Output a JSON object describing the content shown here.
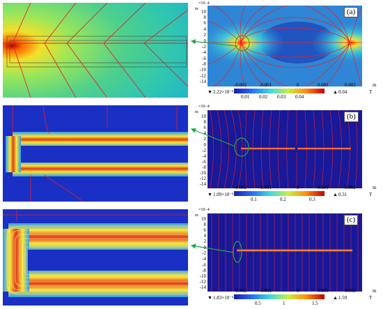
{
  "panels": [
    {
      "label": "(a)",
      "y_exponent": "×10−4",
      "y_unit": "m",
      "x_unit": "m",
      "y_ticks": [
        "10",
        "8",
        "6",
        "4",
        "2",
        "0",
        "-2",
        "-4",
        "-6",
        "-8",
        "-10",
        "-12",
        "-14"
      ],
      "x_ticks": [
        "-0.002",
        "-0.001",
        "0",
        "0.001",
        "0.002"
      ],
      "min_value": "2.22×10⁻⁶",
      "max_value": "0.04",
      "colorbar_ticks": [
        "0.01",
        "0.02",
        "0.03",
        "0.04"
      ],
      "colorbar_unit": "T"
    },
    {
      "label": "(b)",
      "y_exponent": "×10−4",
      "y_unit": "m",
      "x_unit": "m",
      "y_ticks": [
        "10",
        "8",
        "6",
        "4",
        "2",
        "0",
        "-2",
        "-4",
        "-6",
        "-8",
        "-10",
        "-12",
        "-14"
      ],
      "x_ticks": [
        "-0.002",
        "-0.001",
        "0",
        "0.001",
        "0.002"
      ],
      "min_value": "1.09×10⁻⁵",
      "max_value": "0.31",
      "colorbar_ticks": [
        "0.1",
        "0.2",
        "0.3"
      ],
      "colorbar_unit": "T"
    },
    {
      "label": "(c)",
      "y_exponent": "×10−4",
      "y_unit": "m",
      "x_unit": "m",
      "y_ticks": [
        "10",
        "8",
        "6",
        "4",
        "2",
        "0",
        "-2",
        "-4",
        "-6",
        "-8",
        "-10",
        "-12",
        "-14"
      ],
      "x_ticks": [
        "-0.002",
        "-0.001",
        "0",
        "0.001",
        "0.002"
      ],
      "min_value": "1.83×10⁻⁴",
      "max_value": "1.59",
      "colorbar_ticks": [
        "0.5",
        "1",
        "1.5"
      ],
      "colorbar_unit": "T"
    }
  ],
  "colors": {
    "field_line": "#e8202a",
    "marker": "#22a84a",
    "jet_low": "#1a1ab0",
    "jet_high": "#c00000"
  }
}
